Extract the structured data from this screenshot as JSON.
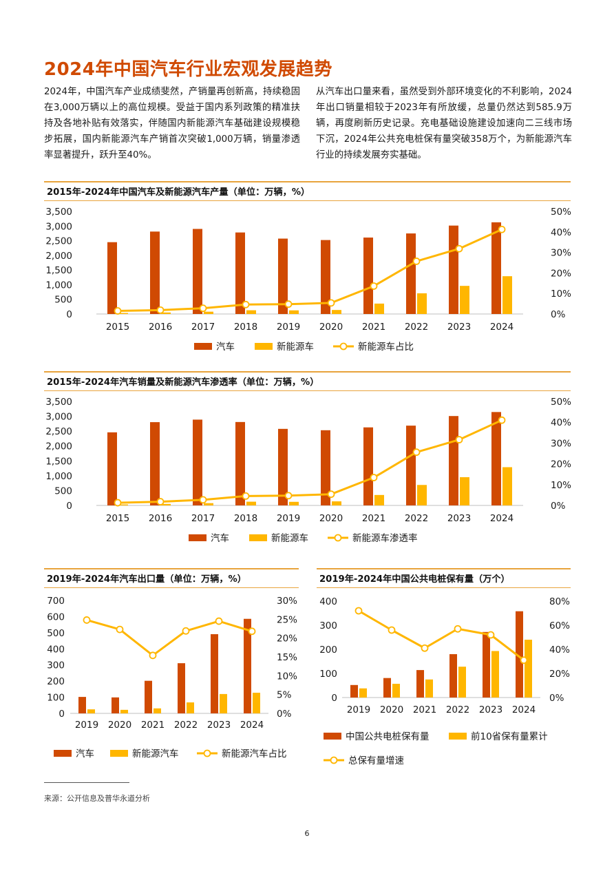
{
  "page": {
    "title": "2024年中国汽车行业宏观发展趋势",
    "intro_left": "2024年，中国汽车产业成绩斐然，产销量再创新高，持续稳固在3,000万辆以上的高位规模。受益于国内系列政策的精准扶持及各地补贴有效落实，伴随国内新能源汽车基础建设规模稳步拓展，国内新能源汽车产销首次突破1,000万辆，销量渗透率显著提升，跃升至40%。",
    "intro_right": "从汽车出口量来看，虽然受到外部环境变化的不利影响，2024年出口销量相较于2023年有所放缓，总量仍然达到585.9万辆，再度刷新历史记录。充电基础设施建设加速向二三线市场下沉，2024年公共充电桩保有量突破358万个，为新能源汽车行业的持续发展夯实基础。",
    "footnote": "来源：公开信息及普华永道分析",
    "page_number": "6"
  },
  "colors": {
    "title": "#d04a02",
    "bar_primary": "#d04a02",
    "bar_secondary": "#ffb600",
    "line": "#ffb600",
    "rule": "#e8a33b"
  },
  "chart_data": [
    {
      "id": "production",
      "type": "bar",
      "title": "2015年-2024年中国汽车及新能源汽车产量（单位：万辆，%）",
      "categories": [
        "2015",
        "2016",
        "2017",
        "2018",
        "2019",
        "2020",
        "2021",
        "2022",
        "2023",
        "2024"
      ],
      "series": [
        {
          "name": "汽车",
          "type": "bar",
          "axis": "left",
          "values": [
            2450,
            2812,
            2902,
            2781,
            2572,
            2523,
            2608,
            2748,
            3016,
            3128
          ]
        },
        {
          "name": "新能源车",
          "type": "bar",
          "axis": "left",
          "values": [
            34,
            52,
            79,
            127,
            124,
            137,
            355,
            706,
            959,
            1289
          ]
        },
        {
          "name": "新能源车占比",
          "type": "line",
          "axis": "right",
          "values": [
            1.5,
            1.9,
            2.8,
            4.6,
            4.8,
            5.4,
            13.6,
            25.7,
            31.8,
            41.2
          ]
        }
      ],
      "yleft": {
        "min": 0,
        "max": 3500,
        "ticks": [
          "0",
          "500",
          "1,000",
          "1,500",
          "2,000",
          "2,500",
          "3,000",
          "3,500"
        ]
      },
      "yright": {
        "min": 0,
        "max": 50,
        "ticks": [
          "0%",
          "10%",
          "20%",
          "30%",
          "40%",
          "50%"
        ]
      },
      "legend_position": "bottom"
    },
    {
      "id": "sales",
      "type": "bar",
      "title": "2015年-2024年汽车销量及新能源汽车渗透率（单位：万辆，%）",
      "categories": [
        "2015",
        "2016",
        "2017",
        "2018",
        "2019",
        "2020",
        "2021",
        "2022",
        "2023",
        "2024"
      ],
      "series": [
        {
          "name": "汽车",
          "type": "bar",
          "axis": "left",
          "values": [
            2460,
            2803,
            2888,
            2808,
            2577,
            2531,
            2627,
            2686,
            3009,
            3144
          ]
        },
        {
          "name": "新能源车",
          "type": "bar",
          "axis": "left",
          "values": [
            33,
            51,
            77,
            126,
            121,
            137,
            352,
            689,
            950,
            1287
          ]
        },
        {
          "name": "新能源车渗透率",
          "type": "line",
          "axis": "right",
          "values": [
            1.3,
            1.8,
            2.7,
            4.5,
            4.7,
            5.4,
            13.4,
            25.6,
            31.6,
            41.0
          ]
        }
      ],
      "yleft": {
        "min": 0,
        "max": 3500,
        "ticks": [
          "0",
          "500",
          "1,000",
          "1,500",
          "2,000",
          "2,500",
          "3,000",
          "3,500"
        ]
      },
      "yright": {
        "min": 0,
        "max": 50,
        "ticks": [
          "0%",
          "10%",
          "20%",
          "30%",
          "40%",
          "50%"
        ]
      },
      "legend_position": "bottom"
    },
    {
      "id": "export",
      "type": "bar",
      "title": "2019年-2024年汽车出口量（单位：万辆，%）",
      "categories": [
        "2019",
        "2020",
        "2021",
        "2022",
        "2023",
        "2024"
      ],
      "series": [
        {
          "name": "汽车",
          "type": "bar",
          "axis": "left",
          "values": [
            102,
            99,
            202,
            311,
            491,
            586
          ]
        },
        {
          "name": "新能源汽车",
          "type": "bar",
          "axis": "left",
          "values": [
            25,
            22,
            31,
            68,
            120,
            128
          ]
        },
        {
          "name": "新能源汽车占比",
          "type": "line",
          "axis": "right",
          "values": [
            24.8,
            22.3,
            15.4,
            21.9,
            24.5,
            21.8
          ]
        }
      ],
      "yleft": {
        "min": 0,
        "max": 700,
        "ticks": [
          "0",
          "100",
          "200",
          "300",
          "400",
          "500",
          "600",
          "700"
        ]
      },
      "yright": {
        "min": 0,
        "max": 30,
        "ticks": [
          "0%",
          "5%",
          "10%",
          "15%",
          "20%",
          "25%",
          "30%"
        ]
      },
      "legend_position": "bottom"
    },
    {
      "id": "charging",
      "type": "bar",
      "title": "2019年-2024年中国公共电桩保有量（万个）",
      "categories": [
        "2019",
        "2020",
        "2021",
        "2022",
        "2023",
        "2024"
      ],
      "series": [
        {
          "name": "中国公共电桩保有量",
          "type": "bar",
          "axis": "left",
          "values": [
            52,
            81,
            114,
            180,
            272,
            358
          ]
        },
        {
          "name": "前10省保有量累计",
          "type": "bar",
          "axis": "left",
          "values": [
            38,
            57,
            75,
            128,
            193,
            240
          ]
        },
        {
          "name": "总保有量增速",
          "type": "line",
          "axis": "right",
          "values": [
            72,
            56,
            41,
            57,
            52,
            31
          ]
        }
      ],
      "yleft": {
        "min": 0,
        "max": 400,
        "ticks": [
          "0",
          "100",
          "200",
          "300",
          "400"
        ]
      },
      "yright": {
        "min": 0,
        "max": 80,
        "ticks": [
          "0%",
          "20%",
          "40%",
          "60%",
          "80%"
        ]
      },
      "legend_position": "bottom"
    }
  ]
}
